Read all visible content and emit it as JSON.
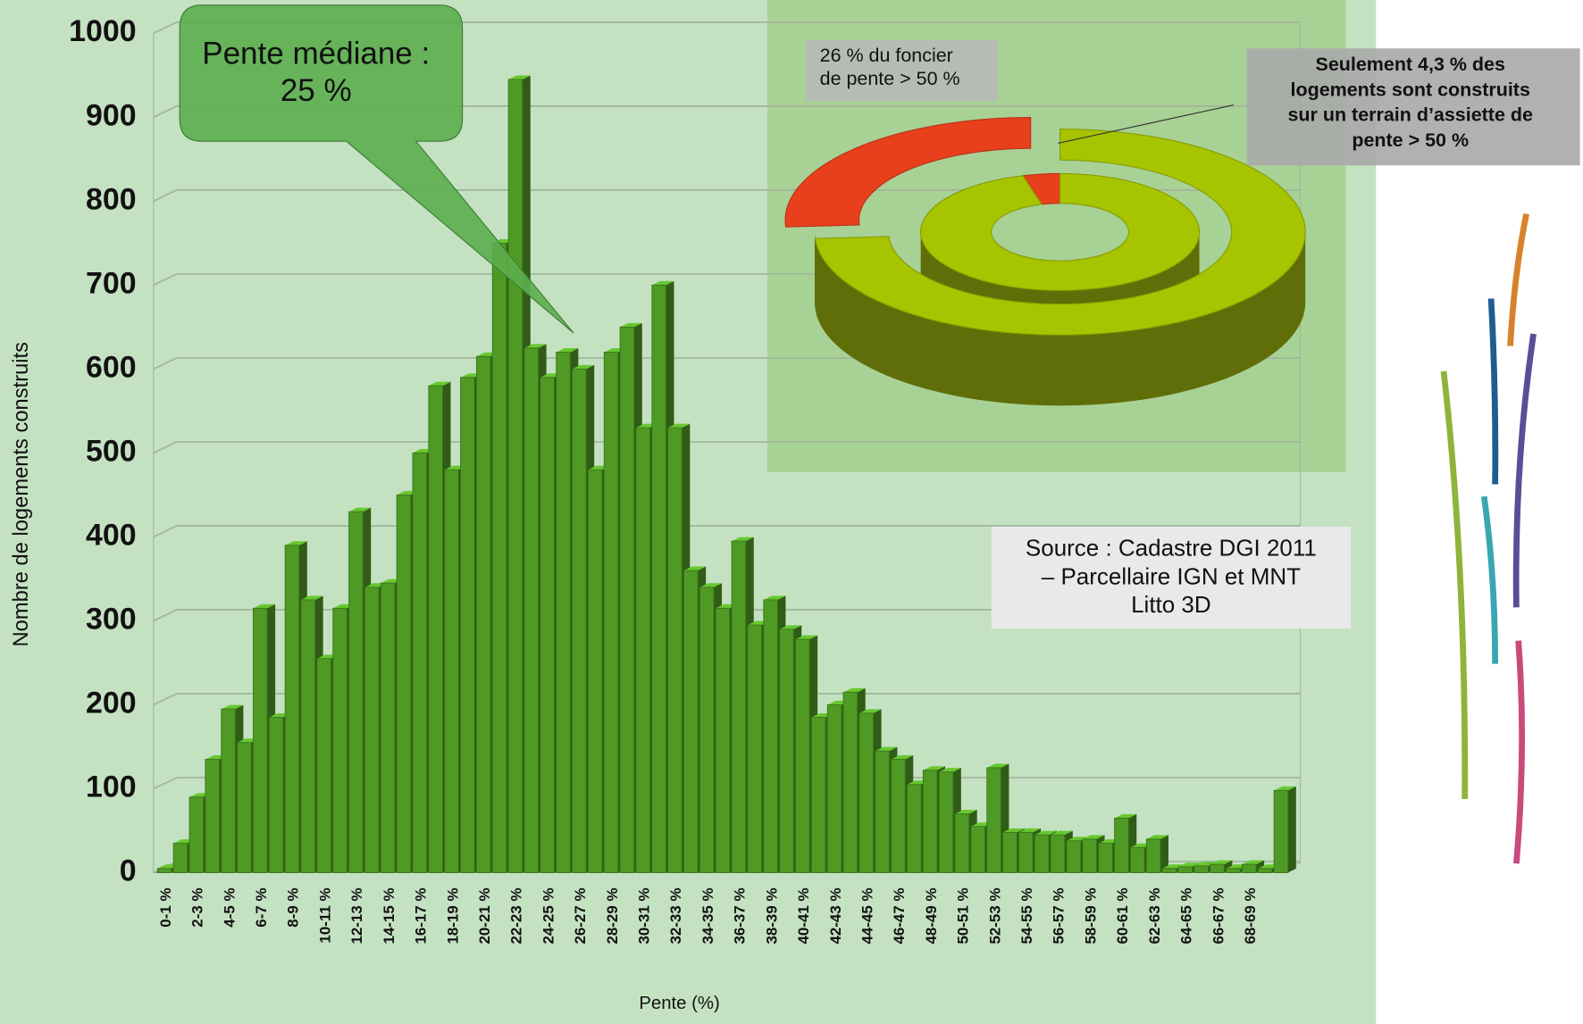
{
  "chart_data": [
    {
      "type": "bar",
      "y_label": "Nombre de logements construits",
      "x_label": "Pente (%)",
      "categories": [
        "0-1 %",
        null,
        "2-3 %",
        null,
        "4-5 %",
        null,
        "6-7 %",
        null,
        "8-9 %",
        null,
        "10-11 %",
        null,
        "12-13 %",
        null,
        "14-15 %",
        null,
        "16-17 %",
        null,
        "18-19 %",
        null,
        "20-21 %",
        null,
        "22-23 %",
        null,
        "24-25 %",
        null,
        "26-27 %",
        null,
        "28-29 %",
        null,
        "30-31 %",
        null,
        "32-33 %",
        null,
        "34-35 %",
        null,
        "36-37 %",
        null,
        "38-39 %",
        null,
        "40-41 %",
        null,
        "42-43 %",
        null,
        "44-45 %",
        null,
        "46-47 %",
        null,
        "48-49 %",
        null,
        "50-51 %",
        null,
        "52-53 %",
        null,
        "54-55 %",
        null,
        "56-57 %",
        null,
        "58-59 %",
        null,
        "60-61 %",
        null,
        "62-63 %",
        null,
        "64-65 %",
        null,
        "66-67 %",
        null,
        "68-69 %",
        null,
        null
      ],
      "values": [
        5,
        35,
        90,
        135,
        195,
        155,
        315,
        185,
        390,
        325,
        255,
        315,
        430,
        340,
        345,
        450,
        500,
        580,
        480,
        590,
        615,
        750,
        945,
        625,
        590,
        620,
        600,
        480,
        620,
        650,
        530,
        700,
        530,
        360,
        340,
        315,
        395,
        295,
        325,
        290,
        278,
        185,
        200,
        215,
        190,
        145,
        135,
        105,
        122,
        120,
        70,
        55,
        125,
        48,
        48,
        45,
        45,
        38,
        40,
        35,
        65,
        30,
        40,
        5,
        7,
        8,
        10,
        5,
        10,
        5,
        98
      ],
      "color": "#4f9a24",
      "ylim": [
        0,
        1000
      ],
      "yticks": [
        0,
        100,
        200,
        300,
        400,
        500,
        600,
        700,
        800,
        900,
        1000
      ],
      "grid": true,
      "median_callout": [
        "Pente médiane :",
        "25 %"
      ],
      "source": [
        "Source : Cadastre DGI 2011",
        "– Parcellaire IGN et MNT",
        "Litto 3D"
      ]
    },
    {
      "type": "donut",
      "rings": [
        {
          "values": [
            26,
            74
          ],
          "colors": [
            "#e8401c",
            "#a6c400"
          ]
        },
        {
          "values": [
            4.3,
            95.7
          ],
          "colors": [
            "#e8401c",
            "#a6c400"
          ]
        }
      ],
      "annotations": [
        [
          "26 % du foncier",
          "de pente > 50 %"
        ],
        [
          "Seulement 4,3 % des",
          "logements sont construits",
          "sur un terrain d’assiette de",
          "pente > 50 %"
        ]
      ]
    }
  ]
}
